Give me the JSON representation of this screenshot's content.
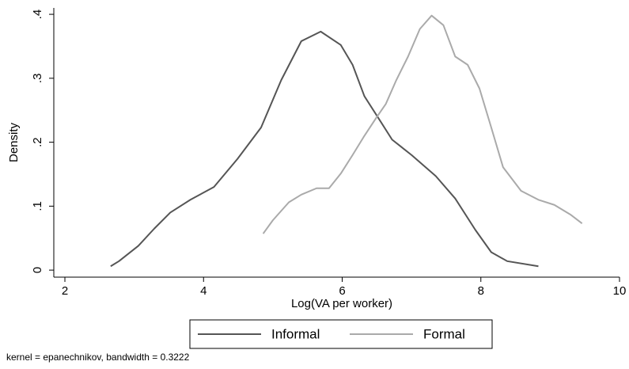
{
  "chart_data": {
    "type": "line",
    "xlabel": "Log(VA per worker)",
    "ylabel": "Density",
    "note": "kernel = epanechnikov, bandwidth = 0.3222",
    "legend": "bottom",
    "xlim": [
      1.84,
      10
    ],
    "xticks": [
      2,
      4,
      6,
      8,
      10
    ],
    "ylim": [
      -0.011,
      0.41
    ],
    "yticks": [
      0,
      {
        "value": 0.1,
        "label": ".1"
      },
      {
        "value": 0.2,
        "label": ".2"
      },
      {
        "value": 0.3,
        "label": ".3"
      },
      {
        "value": 0.4,
        "label": ".4"
      }
    ],
    "grid": false,
    "series": [
      {
        "name": "Informal",
        "color": "#555555",
        "x": [
          2.66,
          2.78,
          3.06,
          3.29,
          3.52,
          3.81,
          4.15,
          4.49,
          4.83,
          5.12,
          5.41,
          5.69,
          5.98,
          6.15,
          6.32,
          6.55,
          6.72,
          7.0,
          7.35,
          7.63,
          7.92,
          8.15,
          8.38,
          8.83
        ],
        "values": [
          0.006,
          0.014,
          0.038,
          0.065,
          0.09,
          0.11,
          0.13,
          0.174,
          0.223,
          0.297,
          0.358,
          0.373,
          0.352,
          0.321,
          0.272,
          0.233,
          0.204,
          0.18,
          0.147,
          0.112,
          0.063,
          0.028,
          0.014,
          0.006
        ]
      },
      {
        "name": "Formal",
        "color": "#aaaaaa",
        "x": [
          4.86,
          5.0,
          5.23,
          5.41,
          5.63,
          5.81,
          5.98,
          6.15,
          6.32,
          6.49,
          6.63,
          6.78,
          6.95,
          7.12,
          7.29,
          7.46,
          7.63,
          7.81,
          7.98,
          8.15,
          8.32,
          8.58,
          8.83,
          9.06,
          9.29,
          9.46
        ],
        "values": [
          0.057,
          0.078,
          0.106,
          0.118,
          0.128,
          0.128,
          0.151,
          0.18,
          0.21,
          0.238,
          0.26,
          0.297,
          0.334,
          0.377,
          0.398,
          0.383,
          0.334,
          0.321,
          0.284,
          0.223,
          0.161,
          0.124,
          0.11,
          0.102,
          0.087,
          0.073
        ]
      }
    ]
  }
}
